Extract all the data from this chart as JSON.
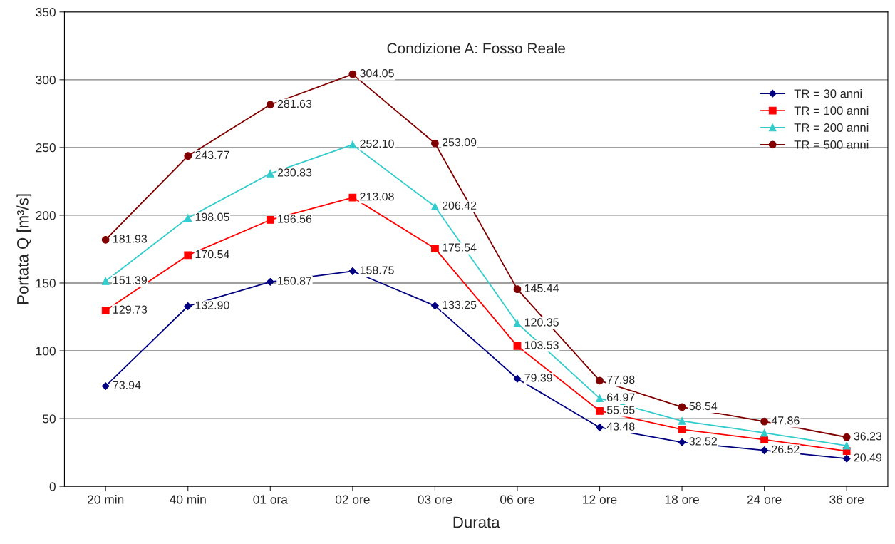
{
  "chart_data": {
    "type": "line",
    "title": "Condizione A: Fosso Reale",
    "xlabel": "Durata",
    "ylabel": "Portata Q [m³/s]",
    "categories": [
      "20 min",
      "40 min",
      "01 ora",
      "02 ore",
      "03 ore",
      "06 ore",
      "12 ore",
      "18 ore",
      "24 ore",
      "36 ore"
    ],
    "series": [
      {
        "name": "TR = 30 anni",
        "color": "#000080",
        "marker": "diamond",
        "values": [
          73.94,
          132.9,
          150.87,
          158.75,
          133.25,
          79.39,
          43.48,
          32.52,
          26.52,
          20.49
        ],
        "value_labels": [
          "73.94",
          "132.90",
          "150.87",
          "158.75",
          "133.25",
          "79.39",
          "43.48",
          "32.52",
          "26.52",
          "20.49"
        ]
      },
      {
        "name": "TR = 100 anni",
        "color": "#ff0000",
        "marker": "square",
        "values": [
          129.73,
          170.54,
          196.56,
          213.08,
          175.54,
          103.53,
          55.65,
          42,
          34.4,
          26
        ],
        "value_labels": [
          "129.73",
          "170.54",
          "196.56",
          "213.08",
          "175.54",
          "103.53",
          "55.65",
          null,
          null,
          null
        ]
      },
      {
        "name": "TR = 200 anni",
        "color": "#33cccc",
        "marker": "triangle",
        "values": [
          151.39,
          198.05,
          230.83,
          252.1,
          206.42,
          120.35,
          64.97,
          48.3,
          39.4,
          30
        ],
        "value_labels": [
          "151.39",
          "198.05",
          "230.83",
          "252.10",
          "206.42",
          "120.35",
          "64.97",
          null,
          null,
          null
        ]
      },
      {
        "name": "TR = 500 anni",
        "color": "#800000",
        "marker": "circle",
        "values": [
          181.93,
          243.77,
          281.63,
          304.05,
          253.09,
          145.44,
          77.98,
          58.54,
          47.86,
          36.23
        ],
        "value_labels": [
          "181.93",
          "243.77",
          "281.63",
          "304.05",
          "253.09",
          "145.44",
          "77.98",
          "58.54",
          "47.86",
          "36.23"
        ]
      }
    ],
    "ylim": [
      0,
      350
    ],
    "yticks": [
      0,
      50,
      100,
      150,
      200,
      250,
      300,
      350
    ],
    "grid": "y",
    "legend": "top right",
    "line_style": "solid"
  }
}
